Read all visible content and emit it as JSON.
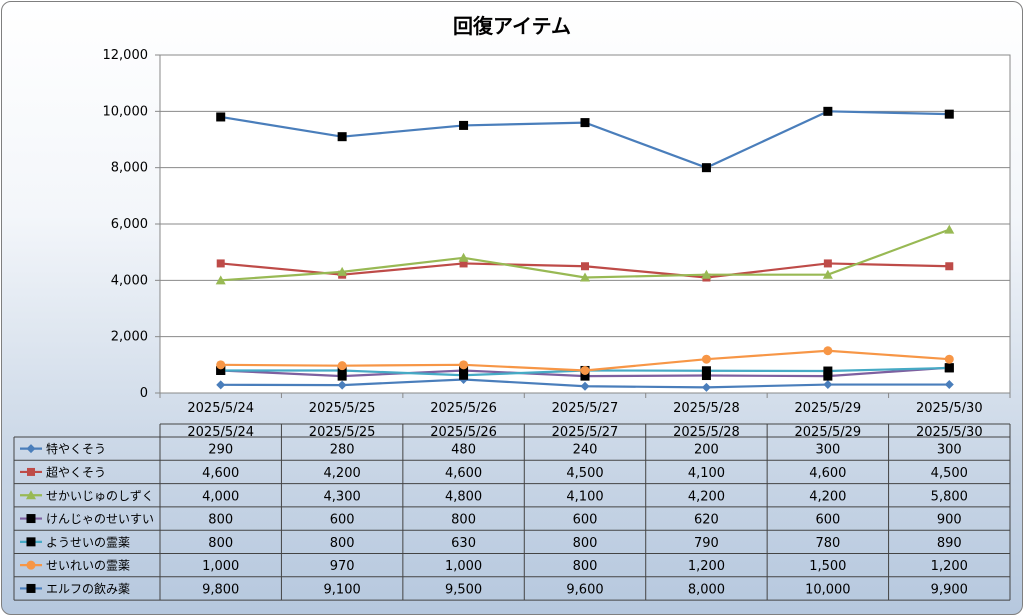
{
  "chart_data": {
    "type": "line",
    "title": "回復アイテム",
    "categories": [
      "2025/5/24",
      "2025/5/25",
      "2025/5/26",
      "2025/5/27",
      "2025/5/28",
      "2025/5/29",
      "2025/5/30"
    ],
    "ylim": [
      0,
      12000
    ],
    "yticks": [
      "0",
      "2,000",
      "4,000",
      "6,000",
      "8,000",
      "10,000",
      "12,000"
    ],
    "grid": true,
    "legend": "data-table",
    "series": [
      {
        "name": "特やくそう",
        "color": "#4a7ebb",
        "marker": "diamond",
        "values": [
          290,
          280,
          480,
          240,
          200,
          300,
          300
        ],
        "labels": [
          "290",
          "280",
          "480",
          "240",
          "200",
          "300",
          "300"
        ]
      },
      {
        "name": "超やくそう",
        "color": "#be4b48",
        "marker": "square",
        "values": [
          4600,
          4200,
          4600,
          4500,
          4100,
          4600,
          4500
        ],
        "labels": [
          "4,600",
          "4,200",
          "4,600",
          "4,500",
          "4,100",
          "4,600",
          "4,500"
        ]
      },
      {
        "name": "せかいじゅのしずく",
        "color": "#98b954",
        "marker": "triangle",
        "values": [
          4000,
          4300,
          4800,
          4100,
          4200,
          4200,
          5800
        ],
        "labels": [
          "4,000",
          "4,300",
          "4,800",
          "4,100",
          "4,200",
          "4,200",
          "5,800"
        ]
      },
      {
        "name": "けんじゃのせいすい",
        "color": "#7d60a0",
        "marker": "blacksquare",
        "values": [
          800,
          600,
          800,
          600,
          620,
          600,
          900
        ],
        "labels": [
          "800",
          "600",
          "800",
          "600",
          "620",
          "600",
          "900"
        ]
      },
      {
        "name": "ようせいの霊薬",
        "color": "#46aac5",
        "marker": "blacksquare",
        "values": [
          800,
          800,
          630,
          800,
          790,
          780,
          890
        ],
        "labels": [
          "800",
          "800",
          "630",
          "800",
          "790",
          "780",
          "890"
        ]
      },
      {
        "name": "せいれいの霊薬",
        "color": "#f79646",
        "marker": "circle",
        "values": [
          1000,
          970,
          1000,
          800,
          1200,
          1500,
          1200
        ],
        "labels": [
          "1,000",
          "970",
          "1,000",
          "800",
          "1,200",
          "1,500",
          "1,200"
        ]
      },
      {
        "name": "エルフの飲み薬",
        "color": "#4a7ebb",
        "marker": "blacksquare",
        "values": [
          9800,
          9100,
          9500,
          9600,
          8000,
          10000,
          9900
        ],
        "labels": [
          "9,800",
          "9,100",
          "9,500",
          "9,600",
          "8,000",
          "10,000",
          "9,900"
        ]
      }
    ]
  }
}
